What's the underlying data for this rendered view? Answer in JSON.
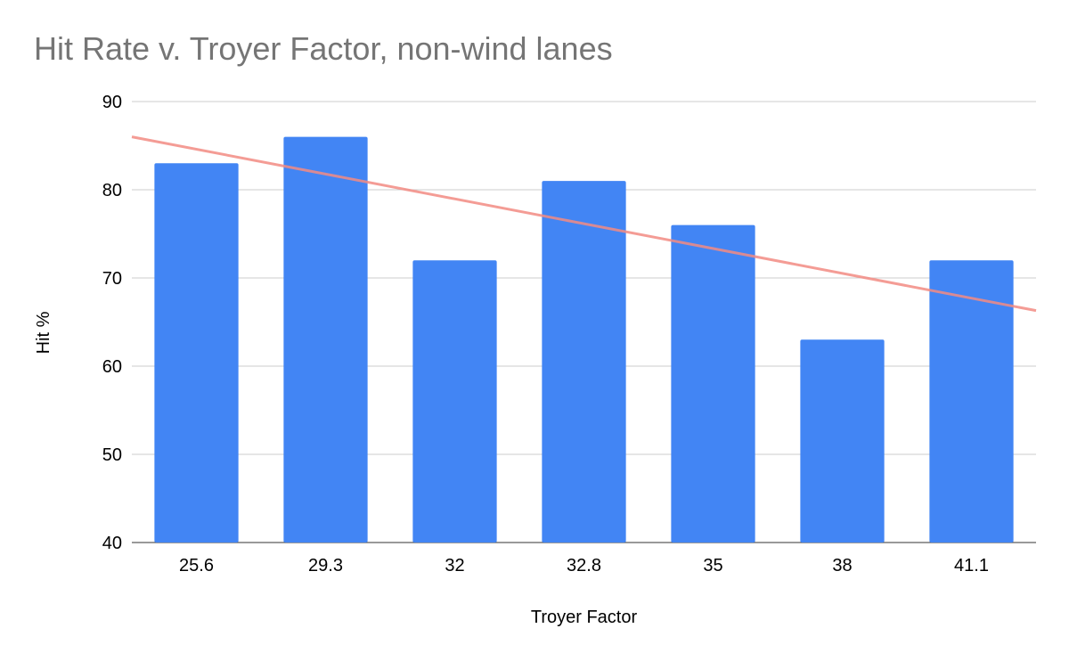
{
  "chart_data": {
    "type": "bar",
    "title": "Hit Rate v. Troyer Factor, non-wind lanes",
    "xlabel": "Troyer Factor",
    "ylabel": "Hit %",
    "categories": [
      "25.6",
      "29.3",
      "32",
      "32.8",
      "35",
      "38",
      "41.1"
    ],
    "values": [
      83,
      86,
      72,
      81,
      76,
      63,
      72
    ],
    "ylim": [
      40,
      90
    ],
    "yticks": [
      40,
      50,
      60,
      70,
      80,
      90
    ],
    "grid": true,
    "bar_color": "#4285f4",
    "trendline": {
      "type": "linear",
      "color": "#f28b82",
      "start": 86,
      "end": 66.3
    }
  }
}
